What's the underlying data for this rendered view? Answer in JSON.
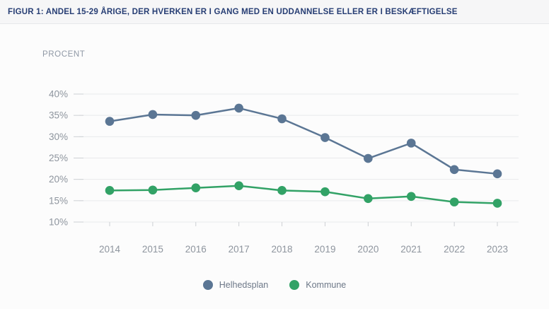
{
  "header": {
    "title": "FIGUR 1: ANDEL 15-29 ÅRIGE, DER HVERKEN ER I GANG MED EN UDDANNELSE ELLER ER I BESKÆFTIGELSE"
  },
  "unit_label": "PROCENT",
  "legend": {
    "items": [
      {
        "label": "Helhedsplan",
        "color": "#5b7694"
      },
      {
        "label": "Kommune",
        "color": "#32a266"
      }
    ]
  },
  "colors": {
    "title": "#273e74",
    "header_bg": "#f6f6f7",
    "card_bg": "#fcfcfc",
    "gridline": "#e9eaeb",
    "tick": "#cdd0d4",
    "axis_text": "#8e959e",
    "unit_text": "#8f98a5",
    "legend_text": "#6d7888",
    "series_helhedsplan": "#5b7694",
    "series_kommune": "#32a266"
  },
  "chart_data": {
    "type": "line",
    "title": "FIGUR 1: ANDEL 15-29 ÅRIGE, DER HVERKEN ER I GANG MED EN UDDANNELSE ELLER ER I BESKÆFTIGELSE",
    "xlabel": "",
    "ylabel": "PROCENT",
    "categories": [
      "2014",
      "2015",
      "2016",
      "2017",
      "2018",
      "2019",
      "2020",
      "2021",
      "2022",
      "2023"
    ],
    "series": [
      {
        "name": "Helhedsplan",
        "color": "#5b7694",
        "values": [
          33.6,
          35.2,
          35.0,
          36.7,
          34.2,
          29.8,
          24.9,
          28.5,
          22.3,
          21.3
        ]
      },
      {
        "name": "Kommune",
        "color": "#32a266",
        "values": [
          17.4,
          17.5,
          18.0,
          18.5,
          17.4,
          17.1,
          15.5,
          16.0,
          14.7,
          14.4
        ]
      }
    ],
    "ylim": [
      10,
      40
    ],
    "yticks": [
      40,
      35,
      30,
      25,
      20,
      15,
      10
    ],
    "ytick_labels": [
      "40%",
      "35%",
      "30%",
      "25%",
      "20%",
      "15%",
      "10%"
    ],
    "grid": true,
    "legend_position": "bottom"
  }
}
